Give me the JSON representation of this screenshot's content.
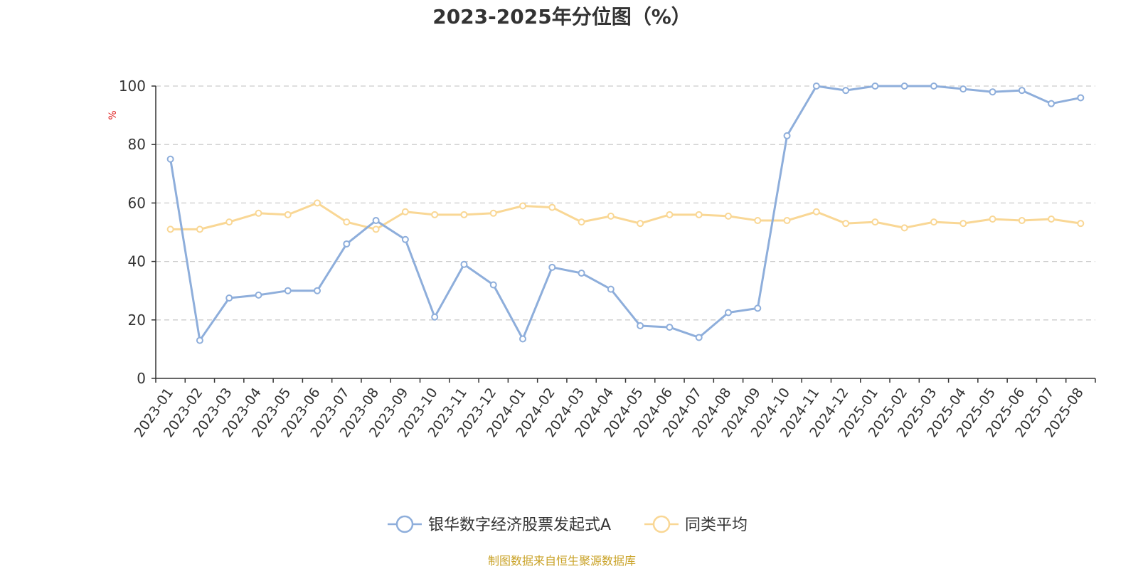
{
  "chart_data": {
    "type": "line",
    "title": "2023-2025年分位图（%）",
    "ylabel": "%",
    "xlabel": "",
    "ylim": [
      0,
      100
    ],
    "yticks": [
      0,
      20,
      40,
      60,
      80,
      100
    ],
    "grid": true,
    "legend_position": "bottom",
    "categories": [
      "2023-01",
      "2023-02",
      "2023-03",
      "2023-04",
      "2023-05",
      "2023-06",
      "2023-07",
      "2023-08",
      "2023-09",
      "2023-10",
      "2023-11",
      "2023-12",
      "2024-01",
      "2024-02",
      "2024-03",
      "2024-04",
      "2024-05",
      "2024-06",
      "2024-07",
      "2024-08",
      "2024-09",
      "2024-10",
      "2024-11",
      "2024-12",
      "2025-01",
      "2025-02",
      "2025-03",
      "2025-04",
      "2025-05",
      "2025-06",
      "2025-07",
      "2025-08"
    ],
    "series": [
      {
        "name": "银华数字经济股票发起式A",
        "color": "#8eaedb",
        "values": [
          75,
          13,
          27.5,
          28.5,
          30,
          30,
          46,
          54,
          47.5,
          21,
          39,
          32,
          13.5,
          38,
          36,
          30.5,
          18,
          17.5,
          14,
          22.5,
          24,
          83,
          100,
          98.5,
          100,
          100,
          100,
          99,
          98,
          98.5,
          94,
          96
        ]
      },
      {
        "name": "同类平均",
        "color": "#f9d795",
        "values": [
          51,
          51,
          53.5,
          56.5,
          56,
          60,
          53.5,
          51,
          57,
          56,
          56,
          56.5,
          59,
          58.5,
          53.5,
          55.5,
          53,
          56,
          56,
          55.5,
          54,
          54,
          57,
          53,
          53.5,
          51.5,
          53.5,
          53,
          54.5,
          54,
          54.5,
          53
        ]
      }
    ],
    "source": "制图数据来自恒生聚源数据库",
    "unit_color": "#e02020",
    "source_color": "#c9a227",
    "axis_color": "#333333",
    "grid_color": "#cccccc"
  }
}
